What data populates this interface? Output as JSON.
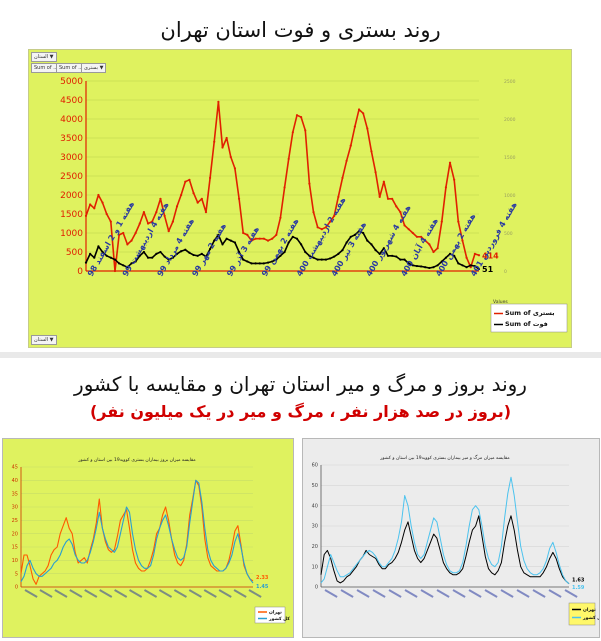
{
  "titles": {
    "main": "روند بستری و فوت استان تهران",
    "second": "روند بروز و مرگ و میر استان تهران و مقایسه با کشور",
    "second_sub": "(بروز در صد هزار نفر ، مرگ و میر در یک میلیون نفر)"
  },
  "colors": {
    "hosp": "#e02000",
    "death": "#000000",
    "tehran": "#ff5a00",
    "country": "#2a9fd0",
    "tehran_b": "#000000",
    "country_b": "#4cc3ee"
  },
  "top_controls": {
    "filter_btn": "الستان ▼",
    "sum_btn1": "Sum of ...",
    "sum_btn2": "Sum of ...",
    "dropdown": "بستری ▼",
    "ok_btn": "الستان ▼"
  },
  "chart_data": [
    {
      "type": "line",
      "title": "",
      "xlabel": "",
      "ylabel": "",
      "ylim": [
        0,
        5000
      ],
      "y_ticks": [
        0,
        500,
        1000,
        1500,
        2000,
        2500,
        3000,
        3500,
        4000,
        4500,
        5000
      ],
      "y2_ticks": [
        0,
        500,
        1000,
        1500,
        2000,
        2500
      ],
      "x_labels": [
        "هفته 1 و 2 اسفند 98",
        "هفته 4 اردیبهشت 99",
        "هفته 4 مرداد 99",
        "هفته 2 مهر 99",
        "هفته 3 آذر 99",
        "هفته 2 بهمن 99",
        "هفته 2 اردیبهشت 400",
        "هفته 3 تیر 400",
        "هفته 4 شهریور 400",
        "هفته 4 آبان 400",
        "هفته 2 بهمن 400",
        "هفته 4 فروردین 401"
      ],
      "legend_title": "Values",
      "legend_position": "bottom-right",
      "series": [
        {
          "name": "Sum of بستری",
          "end_label": "414",
          "values": [
            1450,
            1750,
            1650,
            2000,
            1800,
            1500,
            1300,
            0,
            950,
            1000,
            700,
            800,
            1000,
            1250,
            1550,
            1250,
            1300,
            1550,
            1900,
            1450,
            1050,
            1300,
            1700,
            2000,
            2350,
            2400,
            2050,
            1800,
            1900,
            1550,
            2450,
            3400,
            4450,
            3250,
            3500,
            3000,
            2700,
            1900,
            1000,
            950,
            800,
            850,
            850,
            850,
            800,
            850,
            950,
            1400,
            2200,
            2950,
            3650,
            4100,
            4050,
            3700,
            2300,
            1550,
            1150,
            1100,
            1150,
            1300,
            1450,
            1950,
            2450,
            2900,
            3300,
            3800,
            4250,
            4150,
            3750,
            3150,
            2600,
            1950,
            2350,
            1900,
            1900,
            1700,
            1550,
            1200,
            1100,
            1000,
            900,
            900,
            800,
            700,
            500,
            600,
            1300,
            2200,
            2850,
            2400,
            1300,
            800,
            350,
            100,
            450,
            414
          ]
        },
        {
          "name": "Sum of فوت",
          "end_label": "51",
          "values": [
            220,
            450,
            350,
            650,
            500,
            400,
            350,
            300,
            200,
            150,
            100,
            200,
            250,
            400,
            500,
            350,
            350,
            450,
            500,
            380,
            300,
            350,
            450,
            520,
            560,
            480,
            420,
            400,
            450,
            380,
            580,
            800,
            950,
            700,
            850,
            800,
            750,
            500,
            300,
            250,
            200,
            200,
            200,
            200,
            220,
            250,
            300,
            400,
            500,
            750,
            900,
            850,
            700,
            500,
            400,
            350,
            300,
            300,
            300,
            330,
            380,
            450,
            550,
            750,
            900,
            950,
            1050,
            1000,
            800,
            700,
            550,
            450,
            600,
            400,
            400,
            380,
            300,
            300,
            200,
            150,
            130,
            120,
            100,
            80,
            100,
            150,
            250,
            350,
            450,
            400,
            200,
            150,
            100,
            150,
            130,
            51
          ]
        }
      ]
    },
    {
      "type": "line",
      "title": "مقایسه میزان بروز بیماران بستری کووید19 بین استان و کشور",
      "xlabel": "",
      "ylabel": "",
      "ylim": [
        0,
        45
      ],
      "y_ticks": [
        0,
        5,
        10,
        15,
        20,
        25,
        30,
        35,
        40,
        45
      ],
      "legend_position": "bottom-right",
      "series": [
        {
          "name": "تهران",
          "end_label": "2.33",
          "values": [
            5,
            12,
            12,
            8,
            3,
            1,
            4,
            5,
            6,
            8,
            12,
            14,
            15,
            20,
            23,
            26,
            22,
            20,
            13,
            9,
            10,
            11,
            9,
            14,
            18,
            24,
            33,
            22,
            17,
            14,
            13,
            14,
            19,
            25,
            27,
            29,
            22,
            14,
            9,
            7,
            6,
            6,
            7,
            10,
            14,
            20,
            22,
            27,
            30,
            25,
            18,
            12,
            9,
            8,
            10,
            16,
            27,
            33,
            40,
            38,
            30,
            18,
            11,
            8,
            7,
            6,
            6,
            6,
            7,
            10,
            15,
            21,
            23,
            16,
            8,
            5,
            3,
            2.33
          ]
        },
        {
          "name": "کل کشور",
          "end_label": "1.45",
          "values": [
            2,
            4,
            8,
            10,
            7,
            5,
            4,
            4,
            5,
            6,
            7,
            9,
            10,
            12,
            15,
            17,
            18,
            16,
            12,
            10,
            9,
            9,
            10,
            13,
            17,
            22,
            28,
            22,
            18,
            15,
            14,
            13,
            15,
            20,
            25,
            30,
            28,
            20,
            14,
            10,
            8,
            7,
            7,
            8,
            12,
            18,
            22,
            25,
            27,
            23,
            18,
            14,
            11,
            10,
            11,
            15,
            24,
            32,
            40,
            39,
            32,
            22,
            14,
            10,
            8,
            7,
            6,
            6,
            7,
            9,
            12,
            17,
            20,
            15,
            9,
            5,
            3,
            1.45
          ]
        }
      ]
    },
    {
      "type": "line",
      "title": "مقایسه میزان مرگ و میر بیماران بستری کووید19 بین استان و کشور",
      "xlabel": "",
      "ylabel": "",
      "ylim": [
        0,
        60
      ],
      "y_ticks": [
        0,
        10,
        20,
        30,
        40,
        50,
        60
      ],
      "legend_position": "bottom-right",
      "series": [
        {
          "name": "تهران",
          "end_label": "1.63",
          "values": [
            6,
            16,
            18,
            14,
            8,
            3,
            2,
            3,
            5,
            6,
            8,
            10,
            13,
            15,
            18,
            16,
            15,
            14,
            11,
            9,
            9,
            11,
            12,
            14,
            17,
            22,
            28,
            32,
            25,
            18,
            14,
            12,
            14,
            18,
            22,
            26,
            24,
            18,
            12,
            9,
            7,
            6,
            6,
            7,
            9,
            15,
            22,
            28,
            30,
            35,
            25,
            15,
            9,
            7,
            6,
            8,
            12,
            22,
            30,
            35,
            28,
            18,
            10,
            7,
            6,
            5,
            5,
            5,
            5,
            7,
            10,
            14,
            17,
            14,
            9,
            5,
            3,
            1.63
          ]
        },
        {
          "name": "کل کشور",
          "end_label": "1.59",
          "values": [
            2,
            4,
            10,
            16,
            12,
            8,
            5,
            5,
            6,
            7,
            9,
            11,
            13,
            15,
            17,
            18,
            17,
            15,
            12,
            10,
            10,
            12,
            14,
            18,
            24,
            32,
            45,
            40,
            30,
            22,
            16,
            14,
            16,
            22,
            28,
            34,
            32,
            24,
            16,
            11,
            8,
            7,
            7,
            8,
            12,
            20,
            30,
            38,
            40,
            38,
            30,
            20,
            14,
            11,
            10,
            12,
            20,
            34,
            46,
            54,
            45,
            32,
            20,
            13,
            9,
            7,
            6,
            6,
            7,
            9,
            13,
            19,
            22,
            17,
            11,
            6,
            3,
            1.59
          ]
        }
      ]
    }
  ]
}
